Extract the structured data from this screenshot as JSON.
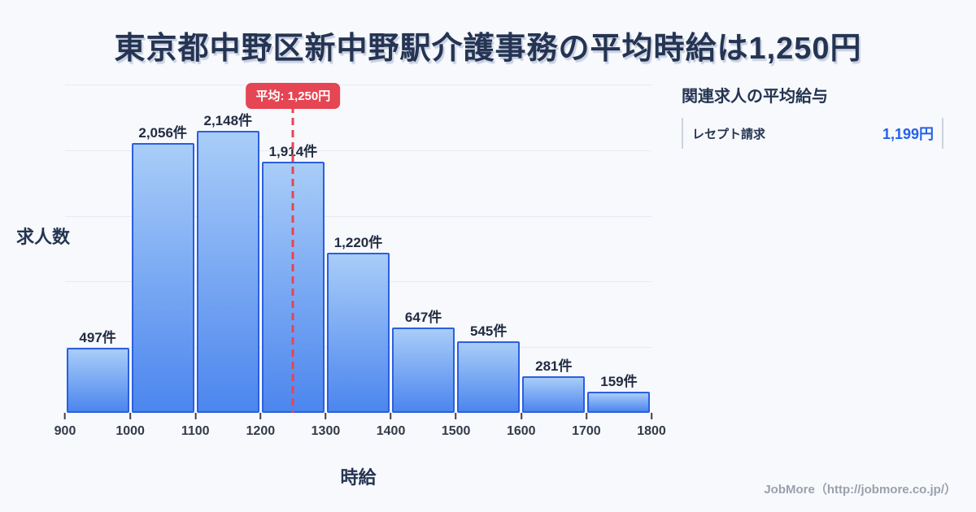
{
  "title": "東京都中野区新中野駅介護事務の平均時給は1,250円",
  "chart_data": {
    "type": "bar",
    "title": "東京都中野区新中野駅介護事務の平均時給は1,250円",
    "xlabel": "時給",
    "ylabel": "求人数",
    "xlim": [
      900,
      1800
    ],
    "ylim": [
      0,
      2500
    ],
    "grid_step": 500,
    "grid_on": true,
    "bin_starts": [
      900,
      1000,
      1100,
      1200,
      1300,
      1400,
      1500,
      1600,
      1700
    ],
    "bin_width": 100,
    "values": [
      497,
      2056,
      2148,
      1914,
      1220,
      647,
      545,
      281,
      159
    ],
    "value_labels": [
      "497件",
      "2,056件",
      "2,148件",
      "1,914件",
      "1,220件",
      "647件",
      "545件",
      "281件",
      "159件"
    ],
    "x_ticks": [
      "900",
      "1000",
      "1100",
      "1200",
      "1300",
      "1400",
      "1500",
      "1600",
      "1700",
      "1800"
    ],
    "average": 1250,
    "average_label": "平均: 1,250円"
  },
  "side_panel": {
    "heading": "関連求人の平均給与",
    "rows": [
      {
        "label": "レセプト請求",
        "value": "1,199円"
      }
    ]
  },
  "footer": {
    "credit": "JobMore（http://jobmore.co.jp/）"
  },
  "colors": {
    "bg": "#f7f9fc",
    "ink": "#253452",
    "bar-border": "#2b5fe0",
    "bar-fill-top": "#a9cdf8",
    "bar-fill-bottom": "#4c86ee",
    "accent-red": "#e64553",
    "accent-blue": "#2461e8",
    "gridline": "#e7eaf1"
  }
}
